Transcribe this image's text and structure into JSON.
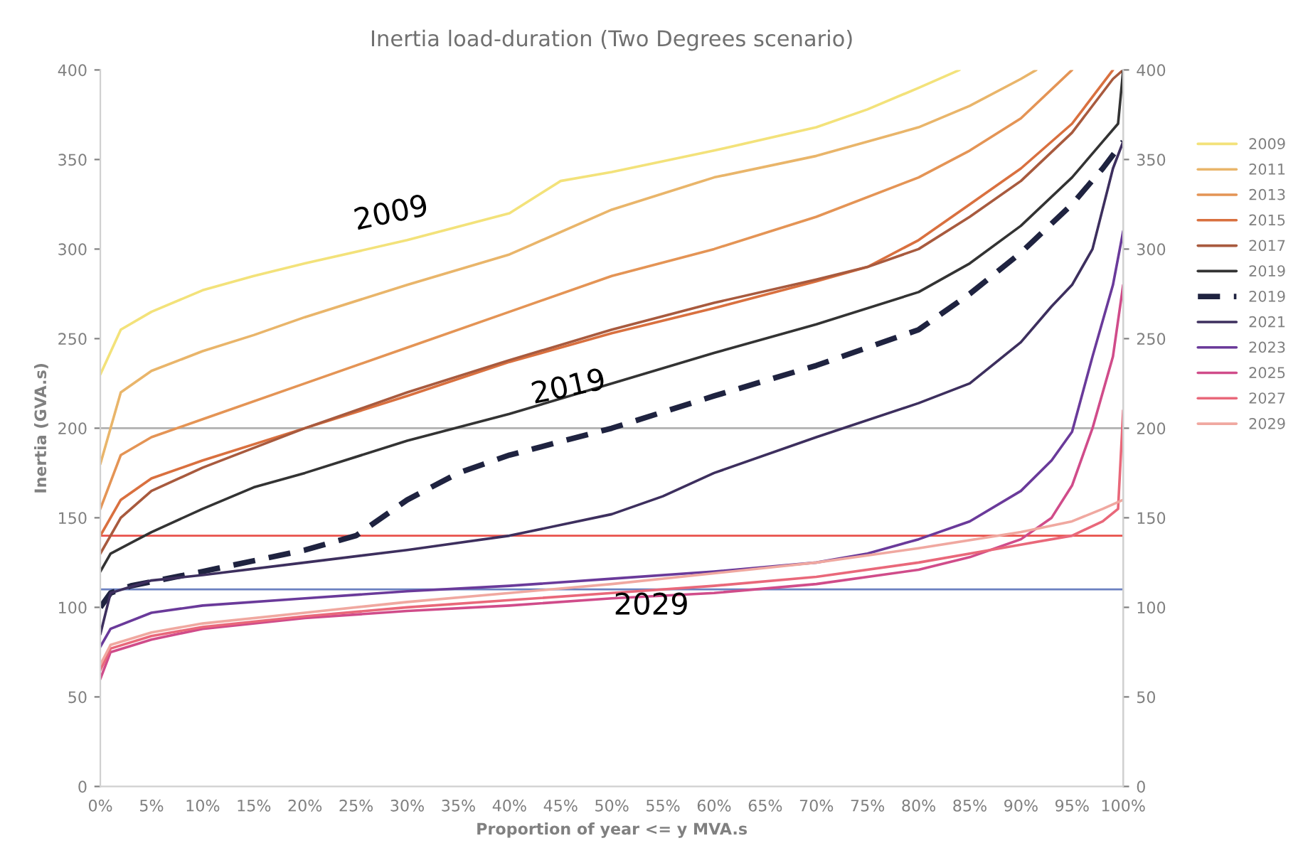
{
  "chart_data": {
    "type": "line",
    "title": "Inertia load-duration (Two Degrees scenario)",
    "xlabel": "Proportion of year <= y MVA.s",
    "ylabel": "Inertia (GVA.s)",
    "xlim": [
      0,
      100
    ],
    "ylim": [
      0,
      400
    ],
    "y2lim": [
      0,
      400
    ],
    "xticks": [
      {
        "value": 0,
        "label": "0%"
      },
      {
        "value": 5,
        "label": "5%"
      },
      {
        "value": 10,
        "label": "10%"
      },
      {
        "value": 15,
        "label": "15%"
      },
      {
        "value": 20,
        "label": "20%"
      },
      {
        "value": 25,
        "label": "25%"
      },
      {
        "value": 30,
        "label": "30%"
      },
      {
        "value": 35,
        "label": "35%"
      },
      {
        "value": 40,
        "label": "40%"
      },
      {
        "value": 45,
        "label": "45%"
      },
      {
        "value": 50,
        "label": "50%"
      },
      {
        "value": 55,
        "label": "55%"
      },
      {
        "value": 60,
        "label": "60%"
      },
      {
        "value": 65,
        "label": "65%"
      },
      {
        "value": 70,
        "label": "70%"
      },
      {
        "value": 75,
        "label": "75%"
      },
      {
        "value": 80,
        "label": "80%"
      },
      {
        "value": 85,
        "label": "85%"
      },
      {
        "value": 90,
        "label": "90%"
      },
      {
        "value": 95,
        "label": "95%"
      },
      {
        "value": 100,
        "label": "100%"
      }
    ],
    "yticks": [
      0,
      50,
      100,
      150,
      200,
      250,
      300,
      350,
      400
    ],
    "y2ticks": [
      0,
      50,
      100,
      150,
      200,
      250,
      300,
      350,
      400
    ],
    "grid": false,
    "legend": "right",
    "line_style": "solid",
    "series": [
      {
        "name": "2009",
        "color": "#f3e27a",
        "x": [
          0,
          2,
          5,
          10,
          15,
          20,
          30,
          40,
          45,
          50,
          60,
          70,
          75,
          80,
          84
        ],
        "values": [
          230,
          255,
          265,
          277,
          285,
          292,
          305,
          320,
          338,
          343,
          355,
          368,
          378,
          390,
          400
        ]
      },
      {
        "name": "2011",
        "color": "#e9b56a",
        "x": [
          0,
          2,
          5,
          10,
          15,
          20,
          30,
          40,
          42,
          50,
          60,
          70,
          80,
          85,
          90,
          91.5
        ],
        "values": [
          180,
          220,
          232,
          243,
          252,
          262,
          280,
          297,
          302,
          322,
          340,
          352,
          368,
          380,
          395,
          400
        ]
      },
      {
        "name": "2013",
        "color": "#e49455",
        "x": [
          0,
          2,
          5,
          10,
          20,
          30,
          40,
          50,
          60,
          70,
          80,
          85,
          90,
          95
        ],
        "values": [
          155,
          185,
          195,
          205,
          225,
          245,
          265,
          285,
          300,
          318,
          340,
          355,
          373,
          400
        ]
      },
      {
        "name": "2015",
        "color": "#d9703f",
        "x": [
          0,
          2,
          5,
          10,
          20,
          30,
          40,
          50,
          60,
          70,
          75,
          80,
          85,
          90,
          95,
          99
        ],
        "values": [
          140,
          160,
          172,
          182,
          200,
          218,
          237,
          253,
          267,
          282,
          290,
          305,
          325,
          345,
          370,
          400
        ]
      },
      {
        "name": "2017",
        "color": "#a85a3e",
        "x": [
          0,
          2,
          5,
          10,
          20,
          30,
          40,
          50,
          60,
          70,
          75,
          80,
          85,
          90,
          95,
          99,
          100
        ],
        "values": [
          130,
          150,
          165,
          178,
          200,
          220,
          238,
          255,
          270,
          283,
          290,
          300,
          318,
          338,
          365,
          395,
          400
        ]
      },
      {
        "name": "2019",
        "color": "#333333",
        "x": [
          0,
          1,
          5,
          10,
          15,
          20,
          30,
          40,
          50,
          60,
          70,
          80,
          85,
          90,
          95,
          98,
          99.5,
          100
        ],
        "values": [
          120,
          130,
          142,
          155,
          167,
          175,
          193,
          208,
          225,
          242,
          258,
          276,
          292,
          313,
          340,
          360,
          370,
          400
        ]
      },
      {
        "name": "2019",
        "color": "#1f2340",
        "line_style": "dashed",
        "x": [
          0,
          1,
          3,
          10,
          20,
          25,
          30,
          35,
          40,
          50,
          60,
          70,
          80,
          85,
          90,
          95,
          98,
          100
        ],
        "values": [
          100,
          108,
          112,
          120,
          132,
          140,
          160,
          175,
          185,
          200,
          218,
          235,
          255,
          275,
          298,
          325,
          345,
          360
        ]
      },
      {
        "name": "2021",
        "color": "#3d2f5e",
        "x": [
          0,
          1,
          5,
          10,
          20,
          30,
          40,
          50,
          55,
          60,
          70,
          80,
          85,
          90,
          93,
          95,
          97,
          99,
          100
        ],
        "values": [
          85,
          108,
          115,
          118,
          125,
          132,
          140,
          152,
          162,
          175,
          195,
          214,
          225,
          248,
          268,
          280,
          300,
          345,
          360
        ]
      },
      {
        "name": "2023",
        "color": "#6a3a9a",
        "x": [
          0,
          1,
          5,
          10,
          20,
          30,
          40,
          50,
          60,
          70,
          75,
          80,
          85,
          90,
          93,
          95,
          97,
          99,
          100
        ],
        "values": [
          78,
          88,
          97,
          101,
          105,
          109,
          112,
          116,
          120,
          125,
          130,
          138,
          148,
          165,
          182,
          198,
          240,
          280,
          310
        ]
      },
      {
        "name": "2025",
        "color": "#d04c8a",
        "x": [
          0,
          1,
          5,
          10,
          20,
          30,
          40,
          50,
          60,
          70,
          80,
          85,
          90,
          93,
          95,
          97,
          99,
          100
        ],
        "values": [
          60,
          75,
          82,
          88,
          94,
          98,
          101,
          105,
          108,
          113,
          121,
          128,
          138,
          150,
          168,
          200,
          240,
          280
        ]
      },
      {
        "name": "2027",
        "color": "#e9687a",
        "x": [
          0,
          1,
          5,
          10,
          20,
          30,
          40,
          50,
          60,
          70,
          80,
          90,
          95,
          98,
          99.5,
          100
        ],
        "values": [
          65,
          77,
          84,
          89,
          95,
          100,
          104,
          108,
          112,
          117,
          125,
          135,
          140,
          148,
          155,
          210
        ]
      },
      {
        "name": "2029",
        "color": "#f0a8a0",
        "x": [
          0,
          1,
          5,
          10,
          20,
          30,
          40,
          50,
          60,
          70,
          80,
          90,
          95,
          98,
          100
        ],
        "values": [
          68,
          79,
          86,
          91,
          97,
          103,
          108,
          113,
          119,
          125,
          133,
          142,
          148,
          155,
          160
        ]
      }
    ],
    "ref_lines": [
      {
        "axis": "y",
        "value": 200,
        "color": "#b0b0b0"
      },
      {
        "axis": "y",
        "value": 140,
        "color": "#e8504a"
      },
      {
        "axis": "y",
        "value": 110,
        "color": "#6a80c0"
      }
    ],
    "annotations": [
      {
        "text": "2009",
        "x": 30,
        "y": 305
      },
      {
        "text": "2019",
        "x": 40,
        "y": 208
      },
      {
        "text": "2029",
        "x": 50,
        "y": 113
      }
    ]
  }
}
